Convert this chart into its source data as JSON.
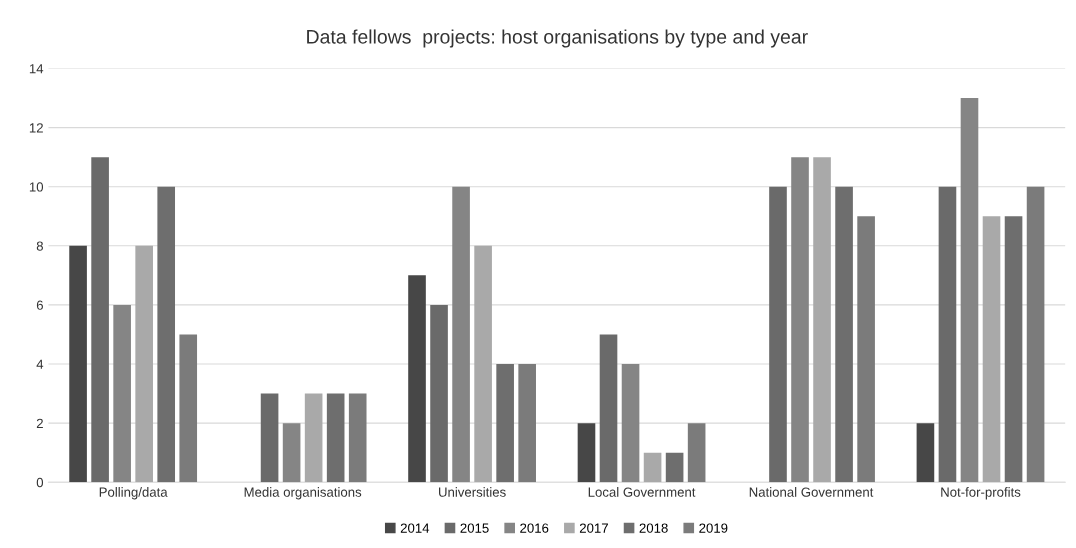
{
  "chart_data": {
    "type": "bar",
    "title": "Data fellows  projects: host organisations by type and year",
    "categories": [
      "Polling/data",
      "Media organisations",
      "Universities",
      "Local Government",
      "National Government",
      "Not-for-profits"
    ],
    "series": [
      {
        "name": "2014",
        "color": "#474747",
        "values": [
          8,
          0,
          7,
          2,
          0,
          2
        ]
      },
      {
        "name": "2015",
        "color": "#6a6a6a",
        "values": [
          11,
          3,
          6,
          5,
          10,
          10
        ]
      },
      {
        "name": "2016",
        "color": "#858585",
        "values": [
          6,
          2,
          10,
          4,
          11,
          13
        ]
      },
      {
        "name": "2017",
        "color": "#a9a9a9",
        "values": [
          8,
          3,
          8,
          1,
          11,
          9
        ]
      },
      {
        "name": "2018",
        "color": "#6e6e6e",
        "values": [
          10,
          3,
          4,
          1,
          10,
          9
        ]
      },
      {
        "name": "2019",
        "color": "#7b7b7b",
        "values": [
          5,
          3,
          4,
          2,
          9,
          10
        ]
      }
    ],
    "ylim": [
      0,
      14
    ],
    "yticks": [
      0,
      2,
      4,
      6,
      8,
      10,
      12,
      14
    ],
    "grid": "y",
    "legend": "bottom"
  }
}
